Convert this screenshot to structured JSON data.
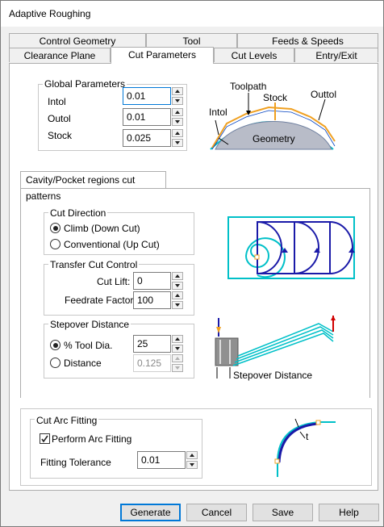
{
  "window": {
    "title": "Adaptive Roughing"
  },
  "tabs": {
    "row1": [
      "Control Geometry",
      "Tool",
      "Feeds & Speeds"
    ],
    "row2": [
      "Clearance Plane",
      "Cut Parameters",
      "Cut Levels",
      "Entry/Exit"
    ],
    "active": "Cut Parameters"
  },
  "global_parameters": {
    "label": "Global Parameters",
    "intol_label": "Intol",
    "intol_value": "0.01",
    "outol_label": "Outol",
    "outol_value": "0.01",
    "stock_label": "Stock",
    "stock_value": "0.025"
  },
  "diagram_labels": {
    "toolpath": "Toolpath",
    "stock": "Stock",
    "outtol": "Outtol",
    "intol": "Intol",
    "geometry": "Geometry",
    "stepover": "Stepover Distance",
    "t": "t"
  },
  "cavity": {
    "tab_label": "Cavity/Pocket regions cut patterns",
    "cut_direction": {
      "label": "Cut Direction",
      "climb": "Climb (Down Cut)",
      "conventional": "Conventional (Up Cut)",
      "selected": "climb"
    },
    "transfer": {
      "label": "Transfer Cut Control",
      "cut_lift_label": "Cut Lift:",
      "cut_lift_value": "0",
      "feedrate_label": "Feedrate Factor:",
      "feedrate_value": "100"
    },
    "stepover": {
      "label": "Stepover Distance",
      "tool_dia_label": "% Tool Dia.",
      "tool_dia_value": "25",
      "distance_label": "Distance",
      "distance_value": "0.125",
      "selected": "tool_dia"
    }
  },
  "arc_fitting": {
    "label": "Cut Arc Fitting",
    "perform_label": "Perform Arc Fitting",
    "perform_checked": true,
    "tolerance_label": "Fitting Tolerance",
    "tolerance_value": "0.01"
  },
  "buttons": {
    "generate": "Generate",
    "cancel": "Cancel",
    "save": "Save",
    "help": "Help"
  },
  "colors": {
    "accent": "#0078d7",
    "cyan": "#00c0c8",
    "navy": "#1a1aa8",
    "orange": "#f0a020",
    "red": "#d00000"
  }
}
